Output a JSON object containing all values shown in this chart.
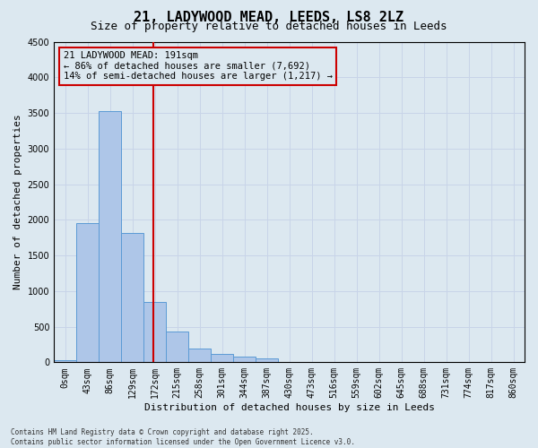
{
  "title": "21, LADYWOOD MEAD, LEEDS, LS8 2LZ",
  "subtitle": "Size of property relative to detached houses in Leeds",
  "xlabel": "Distribution of detached houses by size in Leeds",
  "ylabel": "Number of detached properties",
  "bar_labels": [
    "0sqm",
    "43sqm",
    "86sqm",
    "129sqm",
    "172sqm",
    "215sqm",
    "258sqm",
    "301sqm",
    "344sqm",
    "387sqm",
    "430sqm",
    "473sqm",
    "516sqm",
    "559sqm",
    "602sqm",
    "645sqm",
    "688sqm",
    "731sqm",
    "774sqm",
    "817sqm",
    "860sqm"
  ],
  "bar_values": [
    30,
    1950,
    3520,
    1820,
    850,
    430,
    190,
    120,
    80,
    60,
    0,
    0,
    0,
    0,
    0,
    0,
    0,
    0,
    0,
    0,
    0
  ],
  "bar_color": "#aec6e8",
  "bar_edge_color": "#5b9bd5",
  "grid_color": "#c8d4e8",
  "background_color": "#dce8f0",
  "annotation_line1": "21 LADYWOOD MEAD: 191sqm",
  "annotation_line2": "← 86% of detached houses are smaller (7,692)",
  "annotation_line3": "14% of semi-detached houses are larger (1,217) →",
  "annotation_box_color": "#cc0000",
  "vline_x": 4.44,
  "vline_color": "#cc0000",
  "ylim": [
    0,
    4500
  ],
  "yticks": [
    0,
    500,
    1000,
    1500,
    2000,
    2500,
    3000,
    3500,
    4000,
    4500
  ],
  "footnote": "Contains HM Land Registry data © Crown copyright and database right 2025.\nContains public sector information licensed under the Open Government Licence v3.0.",
  "title_fontsize": 11,
  "subtitle_fontsize": 9,
  "tick_fontsize": 7,
  "ylabel_fontsize": 8,
  "xlabel_fontsize": 8,
  "annotation_fontsize": 7.5
}
